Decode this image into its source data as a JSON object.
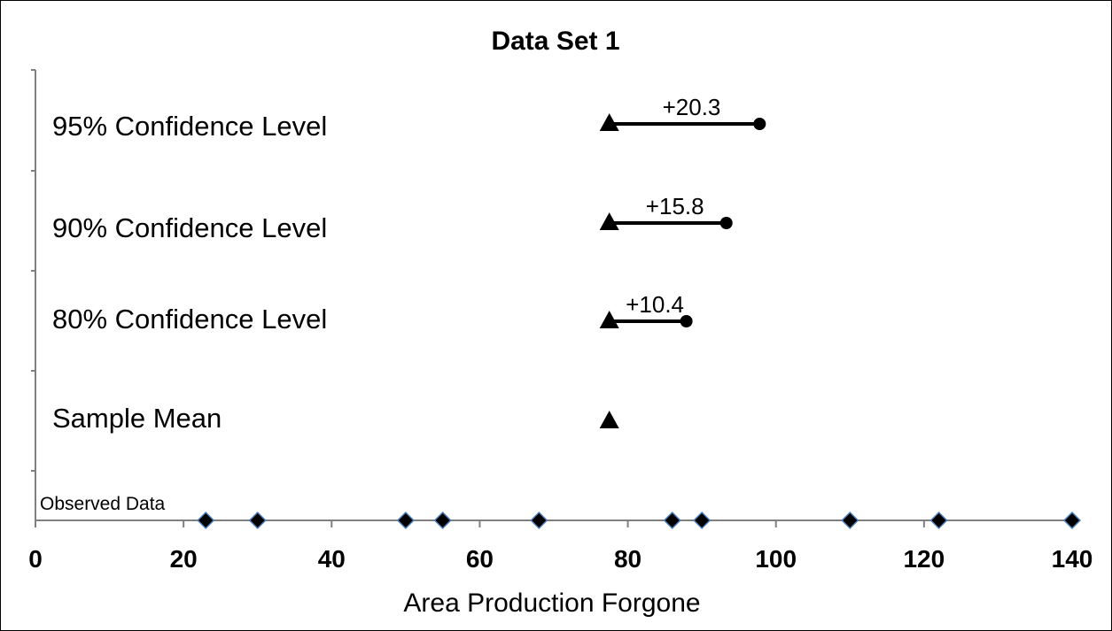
{
  "chart_data": {
    "type": "scatter",
    "title": "Data Set 1",
    "xlabel": "Area Production Forgone",
    "ylabel": "",
    "xlim": [
      0,
      140
    ],
    "x_ticks": [
      0,
      20,
      40,
      60,
      80,
      100,
      120,
      140
    ],
    "grid": false,
    "rows": [
      {
        "label": "95% Confidence Level",
        "mean": 77.5,
        "upper": 97.8,
        "annotation": "+20.3"
      },
      {
        "label": "90% Confidence Level",
        "mean": 77.5,
        "upper": 93.3,
        "annotation": "+15.8"
      },
      {
        "label": "80% Confidence Level",
        "mean": 77.5,
        "upper": 87.9,
        "annotation": "+10.4"
      },
      {
        "label": "Sample Mean",
        "mean": 77.5
      }
    ],
    "observed": {
      "label": "Observed Data",
      "values": [
        23,
        30,
        50,
        55,
        68,
        86,
        90,
        110,
        122,
        140
      ]
    },
    "colors": {
      "axis": "#808080",
      "marker": "#000000",
      "diamond_fill": "#000000",
      "diamond_stroke": "#4f81bd"
    }
  }
}
